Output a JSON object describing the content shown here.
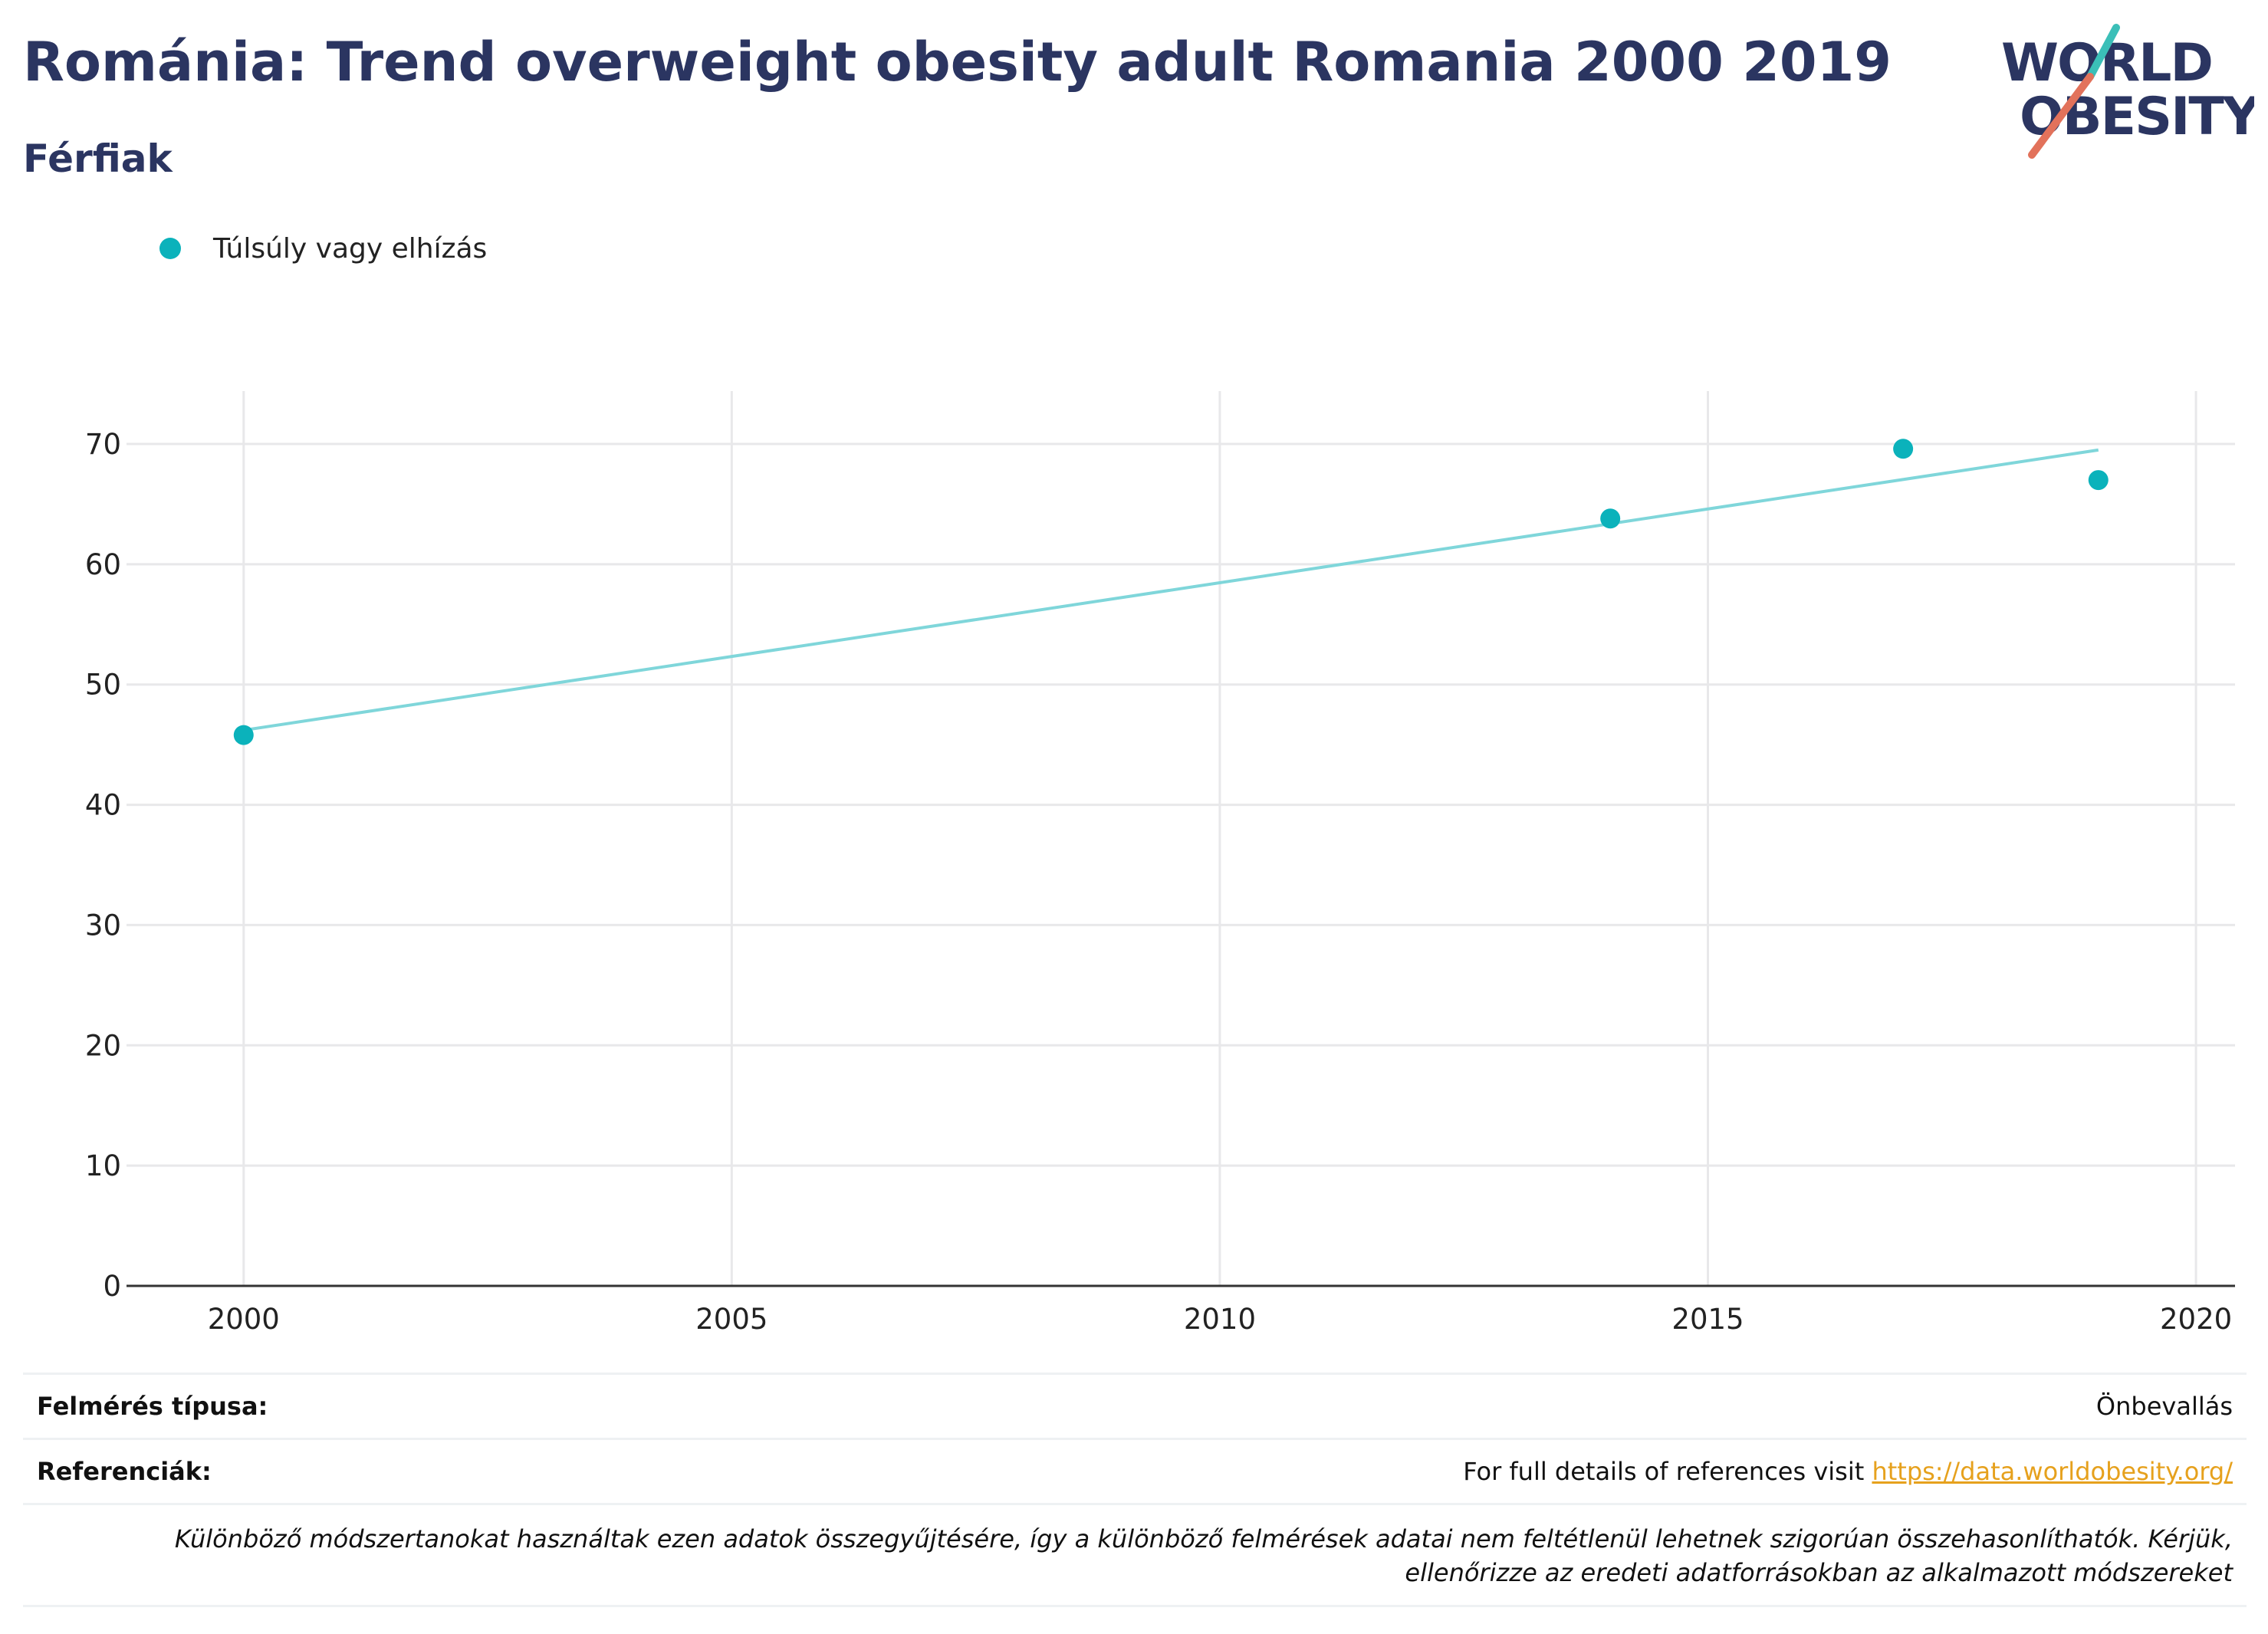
{
  "header": {
    "title": "Románia: Trend overweight obesity adult Romania 2000 2019",
    "subtitle": "Férfiak"
  },
  "logo": {
    "line1": "WORLD",
    "line2": "OBESITY",
    "text_color": "#2b3561",
    "slash_top_color": "#3bbfb8",
    "slash_bottom_color": "#e2725b"
  },
  "colors": {
    "series": "#0bb2bb",
    "trend": "#7fd6da",
    "grid": "#e8e8ea",
    "axis": "#333333",
    "text": "#2b3561",
    "link": "#e6a11d"
  },
  "chart_data": {
    "type": "scatter",
    "title": "",
    "xlabel": "",
    "ylabel": "",
    "xlim": [
      1998.8,
      2020.4
    ],
    "ylim": [
      0,
      74.4
    ],
    "xticks": [
      2000,
      2005,
      2010,
      2015,
      2020
    ],
    "yticks": [
      0,
      10,
      20,
      30,
      40,
      50,
      60,
      70
    ],
    "grid": true,
    "legend_position": "top-left",
    "series": [
      {
        "name": "Túlsúly vagy elhízás",
        "x": [
          2000,
          2014,
          2017,
          2019
        ],
        "y": [
          45.8,
          63.8,
          69.6,
          67.0
        ]
      }
    ],
    "trendline": {
      "x": [
        2000,
        2019
      ],
      "y": [
        46.2,
        69.5
      ]
    }
  },
  "info": {
    "survey_type_label": "Felmérés típusa:",
    "survey_type_value": "Önbevallás",
    "references_label": "Referenciák:",
    "references_text": "For full details of references visit ",
    "references_link": "https://data.worldobesity.org/",
    "note": "Különböző módszertanokat használtak ezen adatok összegyűjtésére, így a különböző felmérések adatai nem feltétlenül lehetnek szigorúan összehasonlíthatók. Kérjük, ellenőrizze az eredeti adatforrásokban az alkalmazott módszereket"
  }
}
